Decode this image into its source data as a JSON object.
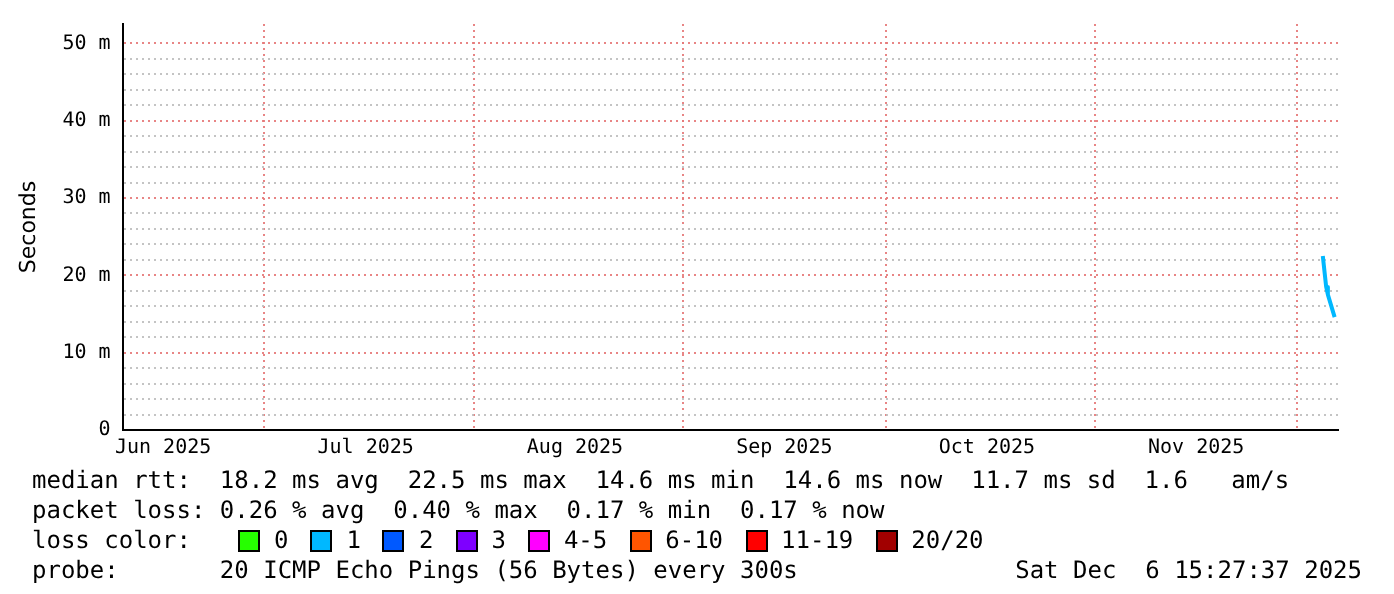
{
  "chart_data": {
    "type": "line",
    "ylabel": "Seconds",
    "legend_title": "loss color:",
    "legend": "bottom",
    "grid": true,
    "marker": "none",
    "x": [
      "2025-12-04T18:00",
      "2025-12-05T06:00",
      "2025-12-05T12:00",
      "2025-12-06T12:00"
    ],
    "xlim": [
      "2025-06-10",
      "2025-12-07"
    ],
    "xticks": [
      {
        "value": "2025-06-16",
        "label": "Jun 2025"
      },
      {
        "value": "2025-07-01",
        "label": null
      },
      {
        "value": "2025-07-16",
        "label": "Jul 2025"
      },
      {
        "value": "2025-08-01",
        "label": null
      },
      {
        "value": "2025-08-16",
        "label": "Aug 2025"
      },
      {
        "value": "2025-09-01",
        "label": null
      },
      {
        "value": "2025-09-16",
        "label": "Sep 2025"
      },
      {
        "value": "2025-10-01",
        "label": null
      },
      {
        "value": "2025-10-16",
        "label": "Oct 2025"
      },
      {
        "value": "2025-11-01",
        "label": null
      },
      {
        "value": "2025-11-16",
        "label": "Nov 2025"
      },
      {
        "value": "2025-12-01",
        "label": null
      }
    ],
    "ylim": [
      0,
      52.5
    ],
    "yticks": [
      {
        "value": 0,
        "label": "0"
      },
      {
        "value": 2,
        "label": null
      },
      {
        "value": 4,
        "label": null
      },
      {
        "value": 6,
        "label": null
      },
      {
        "value": 8,
        "label": null
      },
      {
        "value": 10,
        "label": "10 m"
      },
      {
        "value": 12,
        "label": null
      },
      {
        "value": 14,
        "label": null
      },
      {
        "value": 16,
        "label": null
      },
      {
        "value": 18,
        "label": null
      },
      {
        "value": 20,
        "label": "20 m"
      },
      {
        "value": 22,
        "label": null
      },
      {
        "value": 24,
        "label": null
      },
      {
        "value": 26,
        "label": null
      },
      {
        "value": 28,
        "label": null
      },
      {
        "value": 30,
        "label": "30 m"
      },
      {
        "value": 32,
        "label": null
      },
      {
        "value": 34,
        "label": null
      },
      {
        "value": 36,
        "label": null
      },
      {
        "value": 38,
        "label": null
      },
      {
        "value": 40,
        "label": "40 m"
      },
      {
        "value": 42,
        "label": null
      },
      {
        "value": 44,
        "label": null
      },
      {
        "value": 46,
        "label": null
      },
      {
        "value": 48,
        "label": null
      },
      {
        "value": 50,
        "label": "50 m"
      }
    ],
    "series": [
      {
        "name": "0",
        "color": "#26ff00",
        "values": [
          null,
          null,
          null,
          null
        ]
      },
      {
        "name": "1",
        "color": "#00b8ff",
        "values": [
          22.5,
          18.5,
          17.5,
          14.6
        ]
      },
      {
        "name": "2",
        "color": "#0059ff",
        "values": [
          null,
          null,
          null,
          null
        ]
      },
      {
        "name": "3",
        "color": "#7e00ff",
        "values": [
          null,
          null,
          null,
          null
        ]
      },
      {
        "name": "4-5",
        "color": "#ff00ff",
        "values": [
          null,
          null,
          null,
          null
        ]
      },
      {
        "name": "6-10",
        "color": "#ff5500",
        "values": [
          null,
          null,
          null,
          null
        ]
      },
      {
        "name": "11-19",
        "color": "#ff0000",
        "values": [
          null,
          null,
          null,
          null
        ]
      },
      {
        "name": "20/20",
        "color": "#a10000",
        "values": [
          null,
          null,
          null,
          null
        ]
      }
    ],
    "annotations": [
      "median rtt:  18.2 ms avg  22.5 ms max  14.6 ms min  14.6 ms now  11.7 ms sd  1.6   am/s",
      "packet loss: 0.26 % avg  0.40 % max  0.17 % min  0.17 % now",
      "probe:       20 ICMP Echo Pings (56 Bytes) every 300s",
      "Sat Dec  6 15:27:37 2025"
    ]
  }
}
